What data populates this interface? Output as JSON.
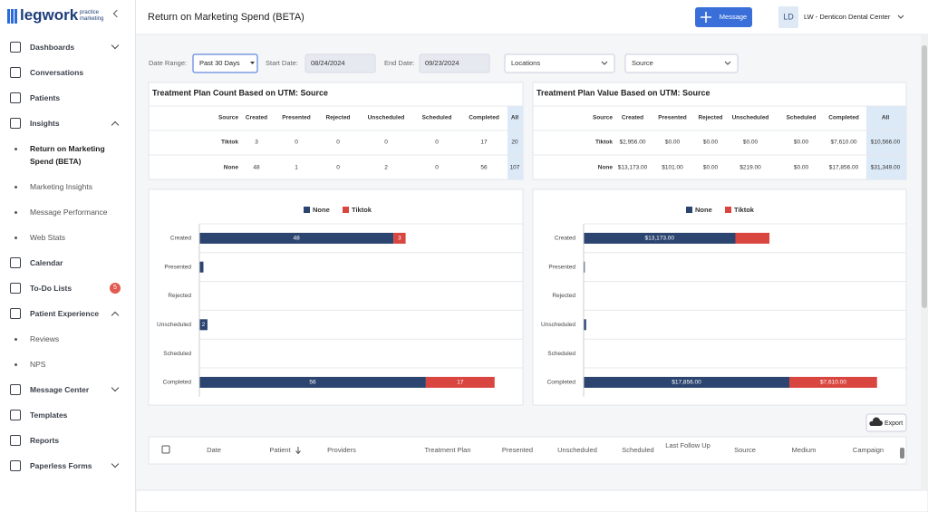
{
  "sidebar": {
    "logo": "legwork",
    "logo_sub": [
      "practice",
      "marketing"
    ],
    "nav": [
      {
        "label": "Dashboards",
        "expanded": false
      },
      {
        "label": "Conversations"
      },
      {
        "label": "Patients"
      },
      {
        "label": "Insights",
        "expanded": true,
        "children": [
          "Return on Marketing Spend (BETA)",
          "Marketing Insights",
          "Message Performance",
          "Web Stats"
        ]
      },
      {
        "label": "Calendar"
      },
      {
        "label": "To-Do Lists",
        "badge": 5
      },
      {
        "label": "Patient Experience",
        "expanded": true,
        "children": [
          "Reviews",
          "NPS"
        ]
      },
      {
        "label": "Message Center",
        "expanded": false
      },
      {
        "label": "Templates"
      },
      {
        "label": "Reports"
      },
      {
        "label": "Paperless Forms",
        "expanded": false
      }
    ]
  },
  "header": {
    "title": "Return on Marketing Spend (BETA)",
    "message_button": "Message",
    "avatar": "LD",
    "account": "LW - Denticon Dental Center"
  },
  "filters": {
    "date_range_label": "Date Range:",
    "date_range": "Past 30 Days",
    "start_label": "Start Date:",
    "start_date": "08/24/2024",
    "end_label": "End Date:",
    "end_date": "09/23/2024",
    "locations": "Locations",
    "source": "Source"
  },
  "tables": [
    {
      "title": "Treatment Plan Count Based on UTM: Source",
      "columns": [
        "Source",
        "Created",
        "Presented",
        "Rejected",
        "Unscheduled",
        "Scheduled",
        "Completed",
        "All"
      ],
      "rows": [
        [
          "Tiktok",
          3,
          0,
          0,
          0,
          0,
          17,
          20
        ],
        [
          "None",
          48,
          1,
          0,
          2,
          0,
          56,
          107
        ]
      ]
    },
    {
      "title": "Treatment Plan Value Based on UTM: Source",
      "columns": [
        "Source",
        "Created",
        "Presented",
        "Rejected",
        "Unscheduled",
        "Scheduled",
        "Completed",
        "All"
      ],
      "rows": [
        [
          "Tiktok",
          "$2,956.00",
          "$0.00",
          "$0.00",
          "$0.00",
          "$0.00",
          "$7,610.00",
          "$10,566.00"
        ],
        [
          "None",
          "$13,173.00",
          "$101.00",
          "$0.00",
          "$219.00",
          "$0.00",
          "$17,856.00",
          "$31,349.00"
        ]
      ]
    }
  ],
  "chart_data": [
    {
      "type": "bar",
      "orientation": "horizontal",
      "stacked": true,
      "legend": "top",
      "categories": [
        "Created",
        "Presented",
        "Rejected",
        "Unscheduled",
        "Scheduled",
        "Completed"
      ],
      "xlim": [
        0,
        80
      ],
      "series": [
        {
          "name": "None",
          "color": "#2b4470",
          "values": [
            48,
            1,
            0,
            2,
            0,
            56
          ]
        },
        {
          "name": "Tiktok",
          "color": "#d9453f",
          "values": [
            3,
            0,
            0,
            0,
            0,
            17
          ]
        }
      ]
    },
    {
      "type": "bar",
      "orientation": "horizontal",
      "stacked": true,
      "legend": "top",
      "categories": [
        "Created",
        "Presented",
        "Rejected",
        "Unscheduled",
        "Scheduled",
        "Completed"
      ],
      "xlim": [
        0,
        28000
      ],
      "series": [
        {
          "name": "None",
          "color": "#2b4470",
          "values": [
            13173,
            101,
            0,
            219,
            0,
            17856
          ],
          "value_labels": [
            "$13,173.00",
            null,
            null,
            null,
            null,
            "$17,856.00"
          ]
        },
        {
          "name": "Tiktok",
          "color": "#d9453f",
          "values": [
            2956,
            0,
            0,
            0,
            0,
            7610
          ],
          "value_labels": [
            null,
            null,
            null,
            null,
            null,
            "$7,610.00"
          ]
        }
      ]
    }
  ],
  "export_button": "Export",
  "detail_table": {
    "columns": [
      "Date",
      "Patient",
      "Providers",
      "Treatment Plan",
      "Presented",
      "Unscheduled",
      "Scheduled",
      "Last Follow Up",
      "Source",
      "Medium",
      "Campaign"
    ]
  }
}
